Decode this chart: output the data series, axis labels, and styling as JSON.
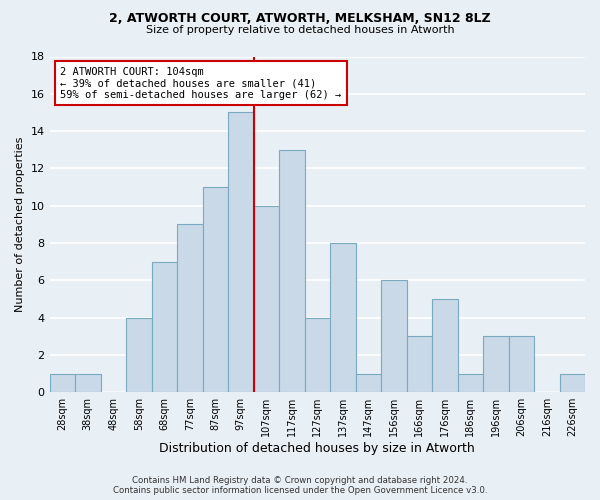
{
  "title1": "2, ATWORTH COURT, ATWORTH, MELKSHAM, SN12 8LZ",
  "title2": "Size of property relative to detached houses in Atworth",
  "xlabel": "Distribution of detached houses by size in Atworth",
  "ylabel": "Number of detached properties",
  "categories": [
    "28sqm",
    "38sqm",
    "48sqm",
    "58sqm",
    "68sqm",
    "77sqm",
    "87sqm",
    "97sqm",
    "107sqm",
    "117sqm",
    "127sqm",
    "137sqm",
    "147sqm",
    "156sqm",
    "166sqm",
    "176sqm",
    "186sqm",
    "196sqm",
    "206sqm",
    "216sqm",
    "226sqm"
  ],
  "values": [
    1,
    1,
    0,
    4,
    7,
    9,
    11,
    15,
    10,
    13,
    4,
    8,
    1,
    6,
    3,
    5,
    1,
    3,
    3,
    0,
    1
  ],
  "bar_color": "#c9d9e8",
  "bar_edge_color": "#7aaabf",
  "vline_color": "#cc0000",
  "annotation_line1": "2 ATWORTH COURT: 104sqm",
  "annotation_line2": "← 39% of detached houses are smaller (41)",
  "annotation_line3": "59% of semi-detached houses are larger (62) →",
  "annotation_box_color": "#ffffff",
  "annotation_box_edge": "#cc0000",
  "ylim": [
    0,
    18
  ],
  "yticks": [
    0,
    2,
    4,
    6,
    8,
    10,
    12,
    14,
    16,
    18
  ],
  "footer1": "Contains HM Land Registry data © Crown copyright and database right 2024.",
  "footer2": "Contains public sector information licensed under the Open Government Licence v3.0.",
  "bg_color": "#e8eff5",
  "grid_color": "#ffffff"
}
